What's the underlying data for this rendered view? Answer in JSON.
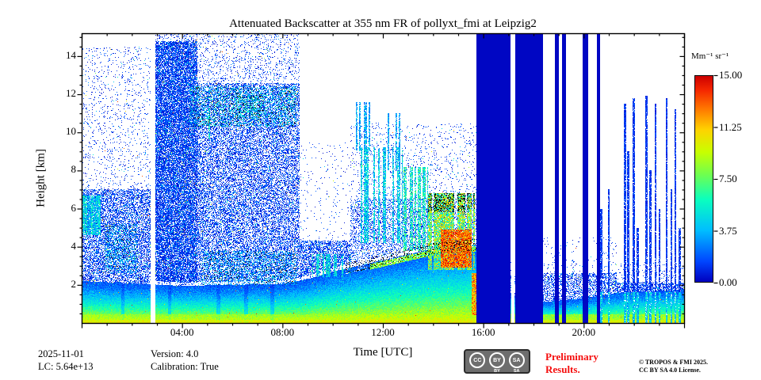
{
  "title": "Attenuated Backscatter at 355 nm FR of pollyxt_fmi at Leipzig2",
  "axes": {
    "x": {
      "label": "Time [UTC]",
      "range_hours": [
        0,
        24
      ],
      "minor_step_hours": 1,
      "major_ticks": [
        {
          "value": 4,
          "label": "04:00"
        },
        {
          "value": 8,
          "label": "08:00"
        },
        {
          "value": 12,
          "label": "12:00"
        },
        {
          "value": 16,
          "label": "16:00"
        },
        {
          "value": 20,
          "label": "20:00"
        }
      ]
    },
    "y": {
      "label": "Height [km]",
      "range_km": [
        0,
        15.2
      ],
      "minor_step_km": 0.5,
      "major_ticks": [
        {
          "value": 2,
          "label": "2"
        },
        {
          "value": 4,
          "label": "4"
        },
        {
          "value": 6,
          "label": "6"
        },
        {
          "value": 8,
          "label": "8"
        },
        {
          "value": 10,
          "label": "10"
        },
        {
          "value": 12,
          "label": "12"
        },
        {
          "value": 14,
          "label": "14"
        }
      ]
    }
  },
  "colorbar": {
    "label": "Mm⁻¹ sr⁻¹",
    "range": [
      0,
      15
    ],
    "ticks": [
      {
        "value": 15,
        "label": "15.00"
      },
      {
        "value": 11.25,
        "label": "11.25"
      },
      {
        "value": 7.5,
        "label": "7.50"
      },
      {
        "value": 3.75,
        "label": "3.75"
      },
      {
        "value": 0,
        "label": "0.00"
      }
    ]
  },
  "footer": {
    "date": "2025-11-01",
    "lc": "LC: 5.64e+13",
    "version": "Version: 4.0",
    "calibration": "Calibration: True",
    "badge_cc": "CC",
    "badge_by": "BY",
    "badge_sa": "SA",
    "preliminary_line1": "Preliminary",
    "preliminary_line2": "Results.",
    "preliminary_color": "#f50d0d",
    "copyright_line1": "© TROPOS & FMI 2025.",
    "copyright_line2": "CC BY SA 4.0 License."
  },
  "chart_data": {
    "type": "heatmap",
    "title": "Attenuated Backscatter at 355 nm FR of pollyxt_fmi at Leipzig2",
    "xlabel": "Time [UTC]",
    "ylabel": "Height [km]",
    "value_label": "Attenuated backscatter [Mm⁻¹ sr⁻¹]",
    "x_range_hours": [
      0,
      24
    ],
    "y_range_km": [
      0,
      15.2
    ],
    "value_range": [
      0,
      15
    ],
    "colormap": "jet",
    "colormap_stops": [
      [
        0.0,
        [
          0,
          0,
          190
        ]
      ],
      [
        0.1,
        [
          0,
          70,
          255
        ]
      ],
      [
        0.25,
        [
          0,
          190,
          255
        ]
      ],
      [
        0.4,
        [
          10,
          255,
          190
        ]
      ],
      [
        0.52,
        [
          110,
          255,
          80
        ]
      ],
      [
        0.63,
        [
          200,
          255,
          0
        ]
      ],
      [
        0.74,
        [
          255,
          210,
          0
        ]
      ],
      [
        0.84,
        [
          255,
          120,
          0
        ]
      ],
      [
        0.93,
        [
          245,
          40,
          0
        ]
      ],
      [
        1.0,
        [
          205,
          0,
          0
        ]
      ]
    ],
    "boundary_layer_top_km": [
      [
        0,
        2.2
      ],
      [
        4,
        1.95
      ],
      [
        8,
        2.05
      ],
      [
        9,
        2.3
      ],
      [
        10,
        2.7
      ],
      [
        12,
        3.3
      ],
      [
        14,
        3.9
      ],
      [
        15.7,
        4.1
      ],
      [
        16.2,
        2.4
      ],
      [
        17.3,
        1.4
      ],
      [
        18.4,
        1.1
      ],
      [
        20,
        1.3
      ],
      [
        21.5,
        1.6
      ],
      [
        24,
        1.75
      ]
    ],
    "noise_segments": [
      [
        0,
        2.75,
        7.0,
        0.5,
        14.5,
        0.07
      ],
      [
        2.95,
        4.6,
        14.8,
        0.72,
        15.2,
        0.2
      ],
      [
        4.6,
        8.7,
        12.6,
        0.4,
        15.2,
        0.12
      ],
      [
        8.7,
        10.7,
        4.3,
        0.55,
        9.5,
        0.03
      ],
      [
        10.7,
        15.72,
        6.5,
        0.25,
        10.5,
        0.06
      ],
      [
        17.1,
        17.27,
        2.5,
        0.4,
        5.0,
        0.05
      ],
      [
        18.38,
        21.3,
        2.6,
        0.4,
        4.5,
        0.04
      ],
      [
        21.3,
        24,
        2.1,
        0.55,
        3.2,
        0.05
      ]
    ],
    "clouds": [
      {
        "t": [
          0.0,
          0.75
        ],
        "h": [
          4.6,
          6.7
        ],
        "vmax": 6,
        "style": "solid"
      },
      {
        "t": [
          0.9,
          2.2
        ],
        "h": [
          2.6,
          5.2
        ],
        "vmax": 4,
        "style": "speckle"
      },
      {
        "t": [
          4.55,
          5.25
        ],
        "h": [
          9.6,
          11.3
        ],
        "vmax": 7,
        "style": "streaks"
      },
      {
        "t": [
          4.3,
          8.6
        ],
        "h": [
          10.3,
          12.4
        ],
        "vmax": 4.5,
        "style": "speckle"
      },
      {
        "t": [
          6.2,
          7.15
        ],
        "h": [
          10.7,
          11.9
        ],
        "vmax": 6,
        "style": "speckle"
      },
      {
        "t": [
          4.8,
          8.6
        ],
        "h": [
          2.0,
          3.8
        ],
        "vmax": 3.5,
        "style": "speckle"
      },
      {
        "t": [
          9.2,
          10.7
        ],
        "h": [
          2.4,
          3.6
        ],
        "vmax": 7,
        "style": "streaks"
      },
      {
        "t": [
          10.9,
          11.5
        ],
        "h": [
          9.0,
          11.6
        ],
        "vmax": 5,
        "style": "streaks"
      },
      {
        "t": [
          11.1,
          12.8
        ],
        "h": [
          4.2,
          9.2
        ],
        "vmax": 6.5,
        "style": "streaks"
      },
      {
        "t": [
          12.2,
          12.7
        ],
        "h": [
          8.0,
          11.0
        ],
        "vmax": 5,
        "style": "streaks"
      },
      {
        "t": [
          12.8,
          13.8
        ],
        "h": [
          3.8,
          8.2
        ],
        "vmax": 8,
        "style": "streaks"
      },
      {
        "t": [
          13.8,
          15.7
        ],
        "h": [
          2.8,
          6.8
        ],
        "vmax": 12,
        "style": "convective"
      },
      {
        "t": [
          14.3,
          15.55
        ],
        "h": [
          2.9,
          4.9
        ],
        "vmax": 15,
        "style": "solid-red"
      },
      {
        "t": [
          15.55,
          15.72
        ],
        "h": [
          0.4,
          2.6
        ],
        "vmax": 14,
        "style": "solid-red"
      }
    ],
    "white_gaps": [
      [
        2.75,
        2.95
      ],
      [
        17.12,
        17.25
      ]
    ],
    "blue_gap_bars": [
      [
        15.72,
        17.1
      ],
      [
        17.27,
        18.38
      ],
      [
        18.85,
        19.02
      ],
      [
        19.15,
        19.3
      ],
      [
        19.95,
        20.18
      ],
      [
        20.52,
        20.66
      ]
    ],
    "dim_streaks": [
      1.65,
      3.5,
      5.45,
      6.55,
      7.6
    ],
    "evening_spikes": [
      [
        20.7,
        6
      ],
      [
        21.0,
        7
      ],
      [
        21.65,
        11.5
      ],
      [
        21.78,
        9
      ],
      [
        22.0,
        11.8
      ],
      [
        22.16,
        5
      ],
      [
        22.5,
        11.9
      ],
      [
        22.66,
        8
      ],
      [
        22.86,
        11.5
      ],
      [
        23.02,
        6
      ],
      [
        23.3,
        11.8
      ],
      [
        23.5,
        7
      ],
      [
        23.66,
        11.2
      ],
      [
        23.82,
        5
      ]
    ]
  }
}
